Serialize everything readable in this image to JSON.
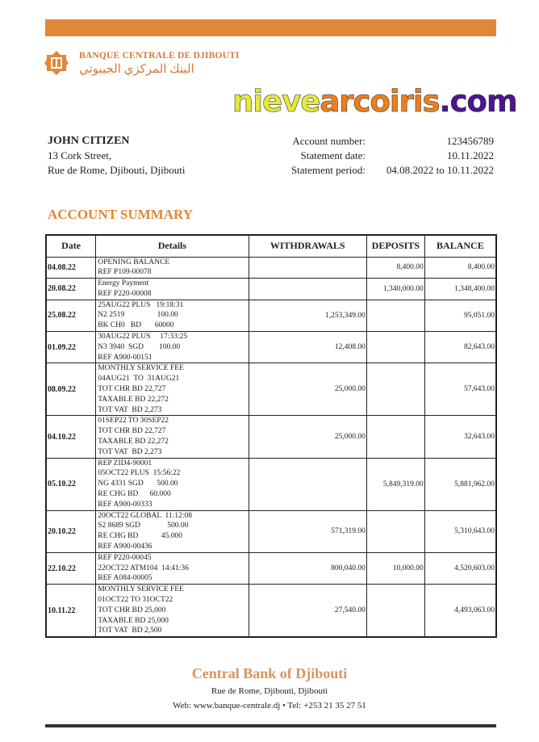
{
  "bank": {
    "name_fr": "BANQUE CENTRALE DE DJIBOUTI",
    "name_ar": "البنك المركزي الجيبوتي",
    "brand_color": "#e0873a"
  },
  "customer": {
    "name": "JOHN CITIZEN",
    "address1": "13 Cork Street,",
    "address2": "Rue de Rome, Djibouti, Djibouti"
  },
  "account": [
    {
      "label": "Account number:",
      "value": "123456789"
    },
    {
      "label": "Statement date:",
      "value": "10.11.2022"
    },
    {
      "label": "Statement period:",
      "value": "04.08.2022 to 10.11.2022"
    }
  ],
  "summary_title": "ACCOUNT SUMMARY",
  "table": {
    "headers": [
      "Date",
      "Details",
      "WITHDRAWALS",
      "DEPOSITS",
      "BALANCE"
    ],
    "rows": [
      {
        "date": "04.08.22",
        "details": "OPENING BALANCE\nREF P109-00078",
        "withdrawal": "",
        "deposit": "8,400.00",
        "balance": "8,400.00"
      },
      {
        "date": "20.08.22",
        "details": "Energy Payment\nREF P220-00008",
        "withdrawal": "",
        "deposit": "1,340,000.00",
        "balance": "1,348,400.00"
      },
      {
        "date": "25.08.22",
        "details": "25AUG22 PLUS   19:18:31\nN2 2519                 100.00\nBK CH0   BD       60000",
        "withdrawal": "1,253,349.00",
        "deposit": "",
        "balance": "95,051.00"
      },
      {
        "date": "01.09.22",
        "details": "30AUG22 PLUS     17:33:25\nN3 3940  SGD        100.00\nREF A900-00151",
        "withdrawal": "12,408.00",
        "deposit": "",
        "balance": "82,643.00"
      },
      {
        "date": "08.09.22",
        "details": "MONTHLY SERVICE FEE\n04AUG21  TO  31AUG21\nTOT CHR BD 22,727\nTAXABLE BD 22,272\nTOT VAT  BD 2,273",
        "withdrawal": "25,000.00",
        "deposit": "",
        "balance": "57,643.00"
      },
      {
        "date": "04.10.22",
        "details": "01SEP22 TO 30SEP22\nTOT CHR BD 22,727\nTAXABLE BD 22,272\nTOT VAT  BD 2,273",
        "withdrawal": "25,000.00",
        "deposit": "",
        "balance": "32,643.00"
      },
      {
        "date": "05.10.22",
        "details": "REP ZID4-90001\n05OCT22 PLUS  15:56:22\nNG 4331 SGD       500.00\nRE CHG BD      60.000\nREF A900-00333",
        "withdrawal": "",
        "deposit": "5,849,319.00",
        "balance": "5,881,962.00"
      },
      {
        "date": "20.10.22",
        "details": "20OCT22 GLOBAL  11:12:08\nS2 8689 SGD              500.00\nRE CHG BD            45.000\nREF A900-00436",
        "withdrawal": "571,319.00",
        "deposit": "",
        "balance": "5,310,643.00"
      },
      {
        "date": "22.10.22",
        "details": "REF P220-00045\n22OCT22 ATM104  14:41:36\nREF A084-00005",
        "withdrawal": "800,040.00",
        "deposit": "10,000.00",
        "balance": "4,520,603.00"
      },
      {
        "date": "10.11.22",
        "details": "MONTHLY SERVICE FEE\n01OCT22 TO 31OCT22\nTOT CHR BD 25,000\nTAXABLE BD 25,000\nTOT VAT  BD 2,500",
        "withdrawal": "27,540.00",
        "deposit": "",
        "balance": "4,493,063.00"
      }
    ]
  },
  "footer": {
    "title": "Central Bank of Djibouti",
    "line1": "Rue de Rome, Djibouti, Djibouti",
    "line2": "Web: www.banque-centrale.dj • Tel: +253 21 35 27 51"
  },
  "watermark": {
    "part1": "nieve",
    "part2": "arcoiris",
    "part3": ".com"
  }
}
